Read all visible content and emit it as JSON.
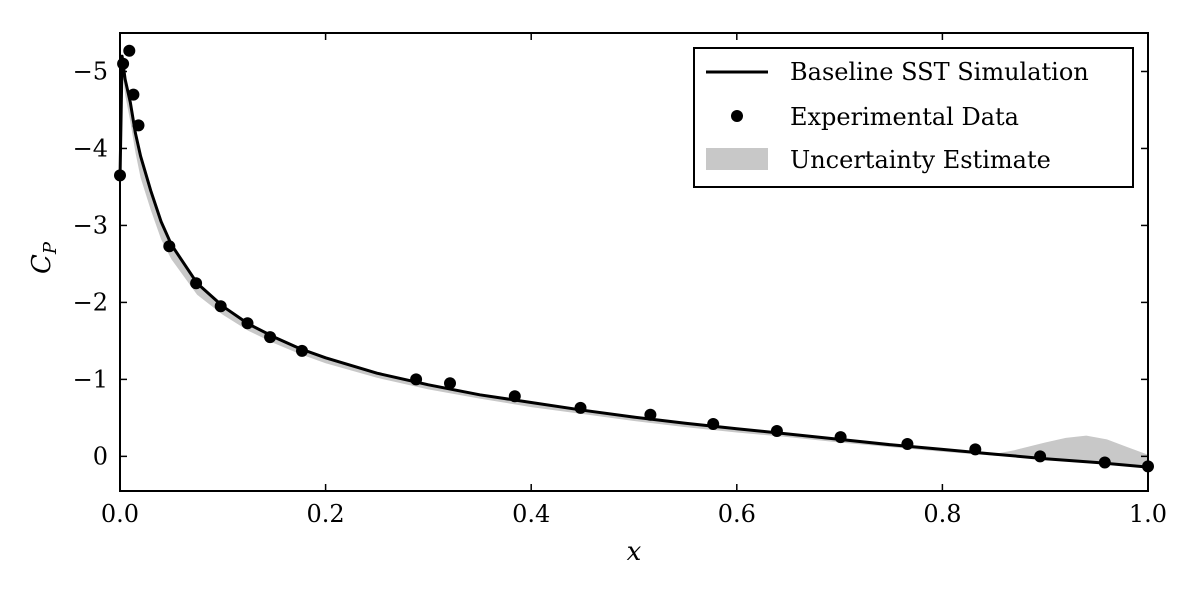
{
  "chart_data": {
    "type": "line",
    "title": "",
    "xlabel": "x",
    "ylabel_main": "C",
    "ylabel_sub": "P",
    "xlim": [
      0.0,
      1.0
    ],
    "ylim": [
      0.45,
      -5.5
    ],
    "y_axis_inverted": true,
    "x_ticks": [
      0.0,
      0.2,
      0.4,
      0.6,
      0.8,
      1.0
    ],
    "x_tick_labels": [
      "0.0",
      "0.2",
      "0.4",
      "0.6",
      "0.8",
      "1.0"
    ],
    "y_ticks": [
      -5,
      -4,
      -3,
      -2,
      -1,
      0
    ],
    "y_tick_labels": [
      "−5",
      "−4",
      "−3",
      "−2",
      "−1",
      "0"
    ],
    "grid": false,
    "legend_position": "top-right",
    "colors": {
      "line": "#000000",
      "points": "#000000",
      "band": "#c8c8c8"
    },
    "series": [
      {
        "name": "Baseline SST Simulation",
        "kind": "line",
        "x": [
          0.0,
          0.002,
          0.005,
          0.01,
          0.015,
          0.02,
          0.03,
          0.04,
          0.05,
          0.075,
          0.1,
          0.125,
          0.15,
          0.175,
          0.2,
          0.25,
          0.3,
          0.35,
          0.4,
          0.45,
          0.5,
          0.55,
          0.6,
          0.65,
          0.7,
          0.75,
          0.8,
          0.85,
          0.9,
          0.95,
          1.0
        ],
        "y": [
          -3.6,
          -5.2,
          -4.9,
          -4.6,
          -4.2,
          -3.9,
          -3.45,
          -3.05,
          -2.75,
          -2.25,
          -1.95,
          -1.72,
          -1.55,
          -1.4,
          -1.28,
          -1.08,
          -0.93,
          -0.8,
          -0.7,
          -0.6,
          -0.51,
          -0.43,
          -0.36,
          -0.29,
          -0.22,
          -0.15,
          -0.09,
          -0.03,
          0.03,
          0.08,
          0.14
        ]
      },
      {
        "name": "Experimental Data",
        "kind": "scatter",
        "x": [
          0.0,
          0.003,
          0.009,
          0.013,
          0.018,
          0.048,
          0.074,
          0.098,
          0.124,
          0.146,
          0.177,
          0.288,
          0.321,
          0.384,
          0.448,
          0.516,
          0.577,
          0.639,
          0.701,
          0.766,
          0.832,
          0.895,
          0.958,
          1.0
        ],
        "y": [
          -3.65,
          -5.1,
          -5.27,
          -4.7,
          -4.3,
          -2.73,
          -2.25,
          -1.95,
          -1.73,
          -1.55,
          -1.37,
          -1.0,
          -0.95,
          -0.78,
          -0.63,
          -0.54,
          -0.42,
          -0.33,
          -0.25,
          -0.16,
          -0.09,
          0.0,
          0.08,
          0.13
        ]
      },
      {
        "name": "Uncertainty Estimate",
        "kind": "band",
        "x": [
          0.002,
          0.005,
          0.01,
          0.015,
          0.02,
          0.03,
          0.04,
          0.05,
          0.075,
          0.1,
          0.125,
          0.15,
          0.175,
          0.2,
          0.25,
          0.3,
          0.35,
          0.4,
          0.45,
          0.5,
          0.55,
          0.6,
          0.65,
          0.7,
          0.75,
          0.8,
          0.85,
          0.87,
          0.9,
          0.92,
          0.94,
          0.96,
          0.98,
          1.0
        ],
        "lower": [
          -5.2,
          -4.9,
          -4.6,
          -4.2,
          -3.9,
          -3.45,
          -3.05,
          -2.75,
          -2.25,
          -1.95,
          -1.72,
          -1.55,
          -1.4,
          -1.28,
          -1.08,
          -0.93,
          -0.8,
          -0.7,
          -0.6,
          -0.51,
          -0.43,
          -0.36,
          -0.29,
          -0.22,
          -0.15,
          -0.09,
          -0.03,
          -0.08,
          -0.18,
          -0.24,
          -0.27,
          -0.22,
          -0.12,
          -0.02
        ],
        "upper": [
          -5.05,
          -4.7,
          -4.35,
          -3.95,
          -3.62,
          -3.2,
          -2.82,
          -2.56,
          -2.1,
          -1.84,
          -1.63,
          -1.47,
          -1.33,
          -1.21,
          -1.02,
          -0.87,
          -0.75,
          -0.64,
          -0.55,
          -0.46,
          -0.38,
          -0.31,
          -0.25,
          -0.18,
          -0.12,
          -0.06,
          -0.01,
          0.0,
          0.03,
          0.05,
          0.06,
          0.08,
          0.1,
          0.12
        ]
      }
    ]
  }
}
